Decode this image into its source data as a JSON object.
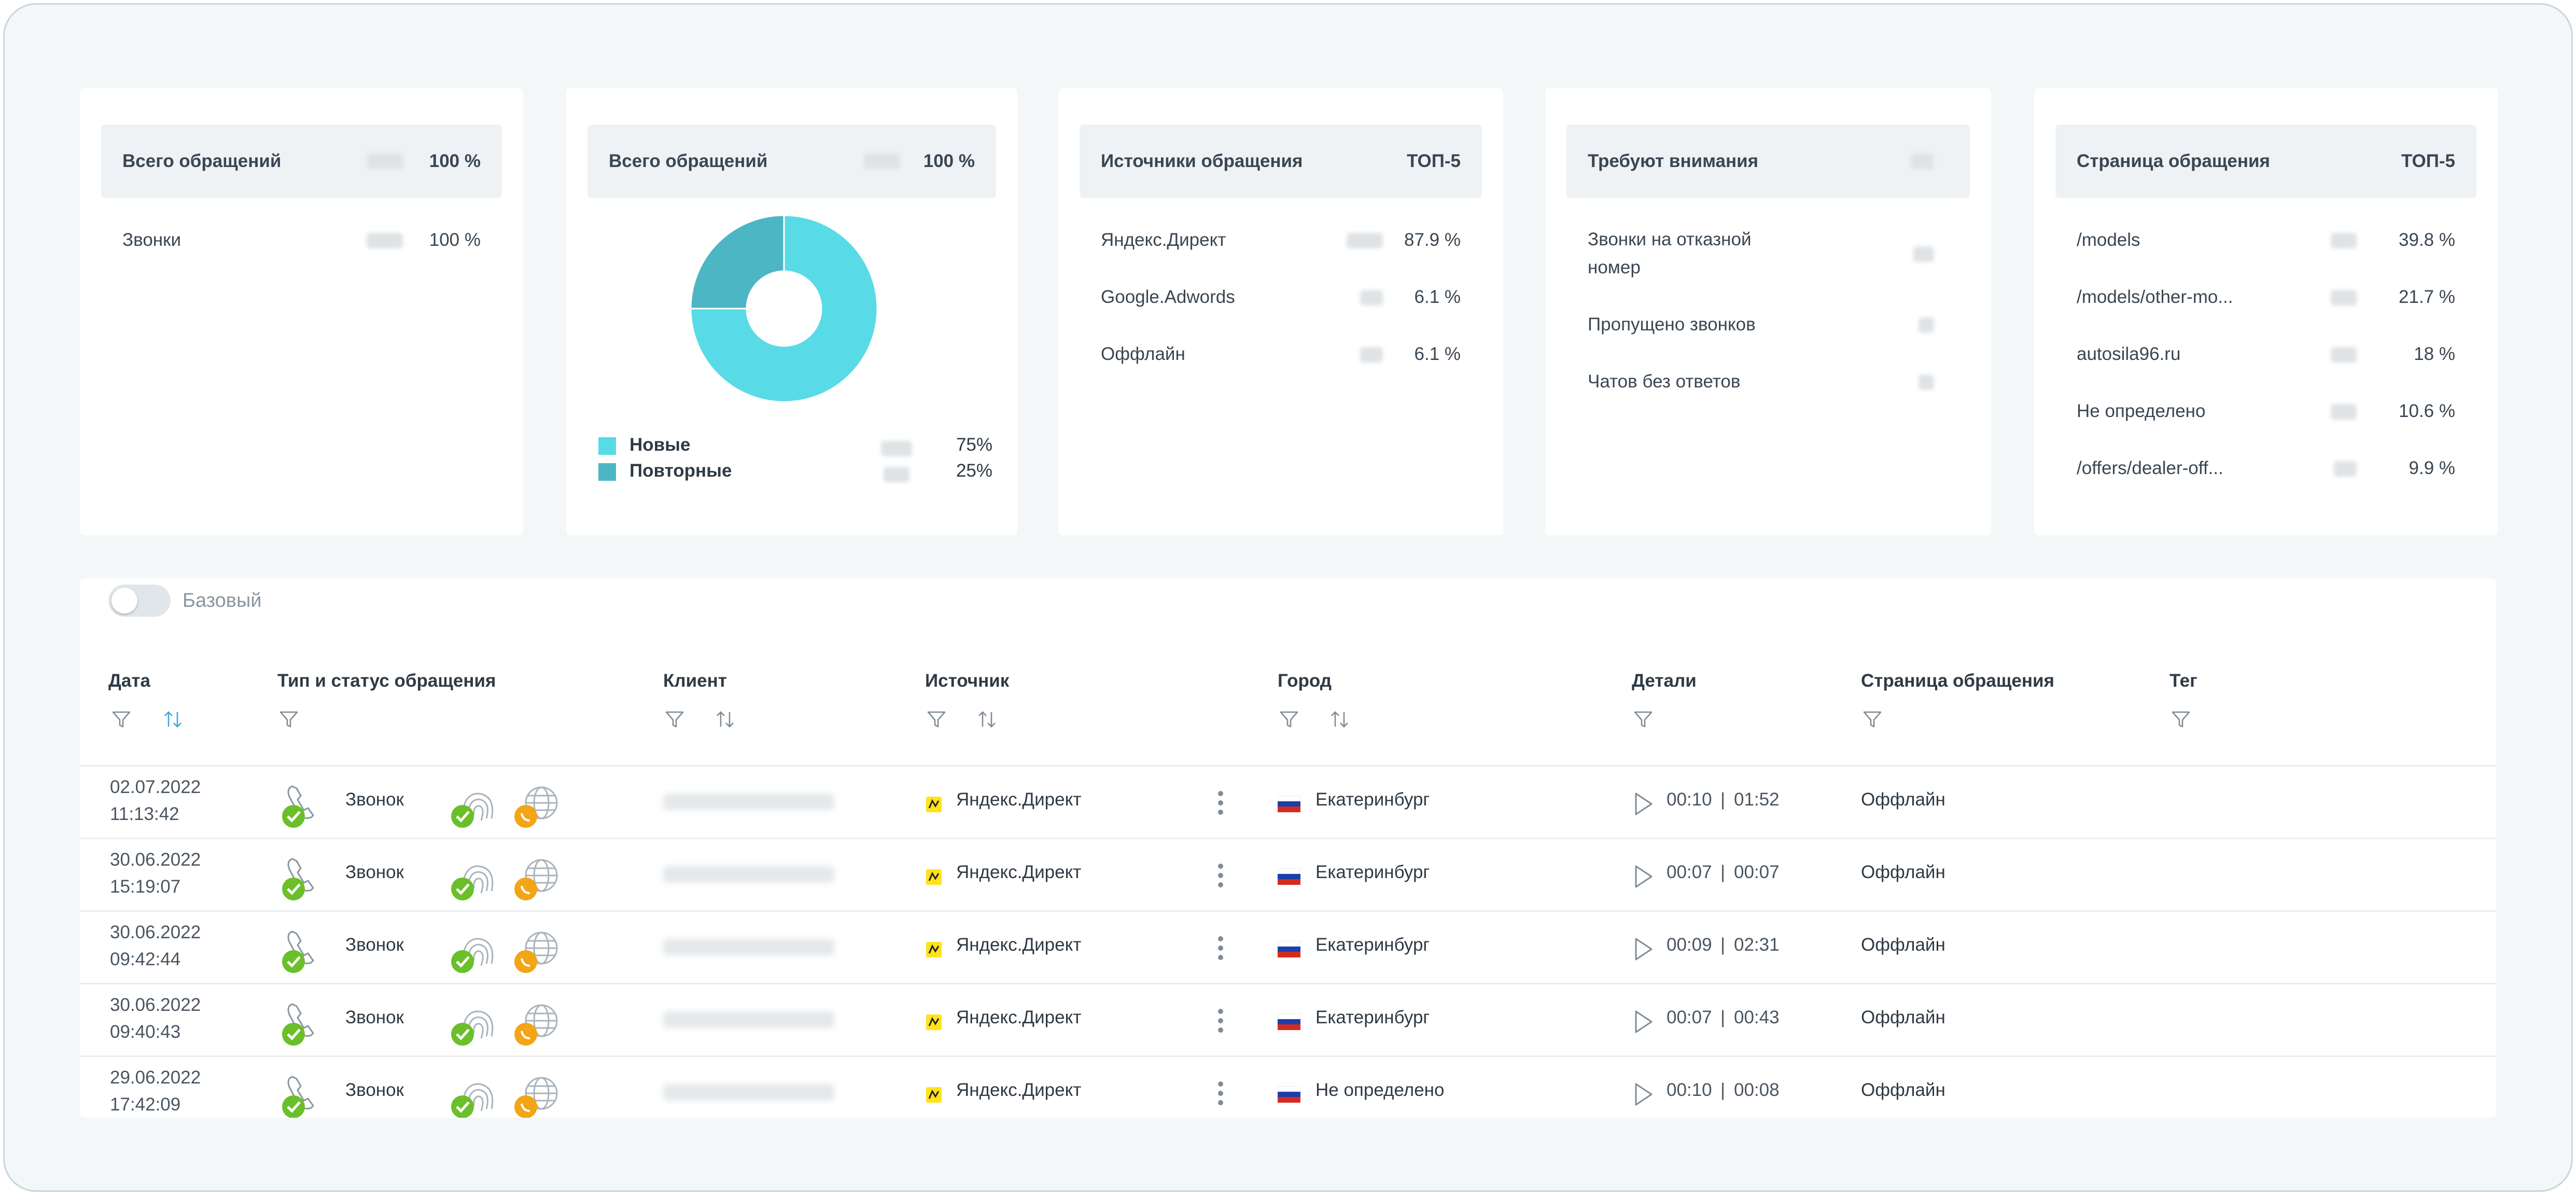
{
  "cards": {
    "total": {
      "title": "Всего обращений",
      "value": "100 %",
      "rows": [
        {
          "label": "Звонки",
          "value": "100 %"
        }
      ]
    },
    "donut": {
      "title": "Всего обращений",
      "value": "100 %",
      "legend": [
        {
          "label": "Новые",
          "value": "75%",
          "color": "#58dbe6"
        },
        {
          "label": "Повторные",
          "value": "25%",
          "color": "#4cb6c4"
        }
      ]
    },
    "sources": {
      "title": "Источники обращения",
      "value": "ТОП-5",
      "rows": [
        {
          "label": "Яндекс.Директ",
          "value": "87.9 %"
        },
        {
          "label": "Google.Adwords",
          "value": "6.1 %"
        },
        {
          "label": "Оффлайн",
          "value": "6.1 %"
        }
      ]
    },
    "attention": {
      "title": "Требуют внимания",
      "rows": [
        {
          "label": "Звонки на отказной номер"
        },
        {
          "label": "Пропущено звонков"
        },
        {
          "label": "Чатов без ответов"
        }
      ]
    },
    "pages": {
      "title": "Страница обращения",
      "value": "ТОП-5",
      "rows": [
        {
          "label": "/models",
          "value": "39.8 %"
        },
        {
          "label": "/models/other-mo...",
          "value": "21.7 %"
        },
        {
          "label": "autosila96.ru",
          "value": "18 %"
        },
        {
          "label": "Не определено",
          "value": "10.6 %"
        },
        {
          "label": "/offers/dealer-off...",
          "value": "9.9 %"
        }
      ]
    }
  },
  "chart_data": {
    "type": "pie",
    "categories": [
      "Новые",
      "Повторные"
    ],
    "values": [
      75,
      25
    ],
    "colors": [
      "#58dbe6",
      "#4cb6c4"
    ]
  },
  "table": {
    "toggle_label": "Базовый",
    "headers": {
      "date": "Дата",
      "type": "Тип и статус обращения",
      "client": "Клиент",
      "source": "Источник",
      "city": "Город",
      "details": "Детали",
      "page": "Страница обращения",
      "tag": "Тег"
    },
    "rows": [
      {
        "date": "02.07.2022",
        "time": "11:13:42",
        "type": "Звонок",
        "source": "Яндекс.Директ",
        "city": "Екатеринбург",
        "dur": "00:10",
        "total": "01:52",
        "page": "Оффлайн"
      },
      {
        "date": "30.06.2022",
        "time": "15:19:07",
        "type": "Звонок",
        "source": "Яндекс.Директ",
        "city": "Екатеринбург",
        "dur": "00:07",
        "total": "00:07",
        "page": "Оффлайн"
      },
      {
        "date": "30.06.2022",
        "time": "09:42:44",
        "type": "Звонок",
        "source": "Яндекс.Директ",
        "city": "Екатеринбург",
        "dur": "00:09",
        "total": "02:31",
        "page": "Оффлайн"
      },
      {
        "date": "30.06.2022",
        "time": "09:40:43",
        "type": "Звонок",
        "source": "Яндекс.Директ",
        "city": "Екатеринбург",
        "dur": "00:07",
        "total": "00:43",
        "page": "Оффлайн"
      },
      {
        "date": "29.06.2022",
        "time": "17:42:09",
        "type": "Звонок",
        "source": "Яндекс.Директ",
        "city": "Не определено",
        "dur": "00:10",
        "total": "00:08",
        "page": "Оффлайн"
      }
    ]
  }
}
